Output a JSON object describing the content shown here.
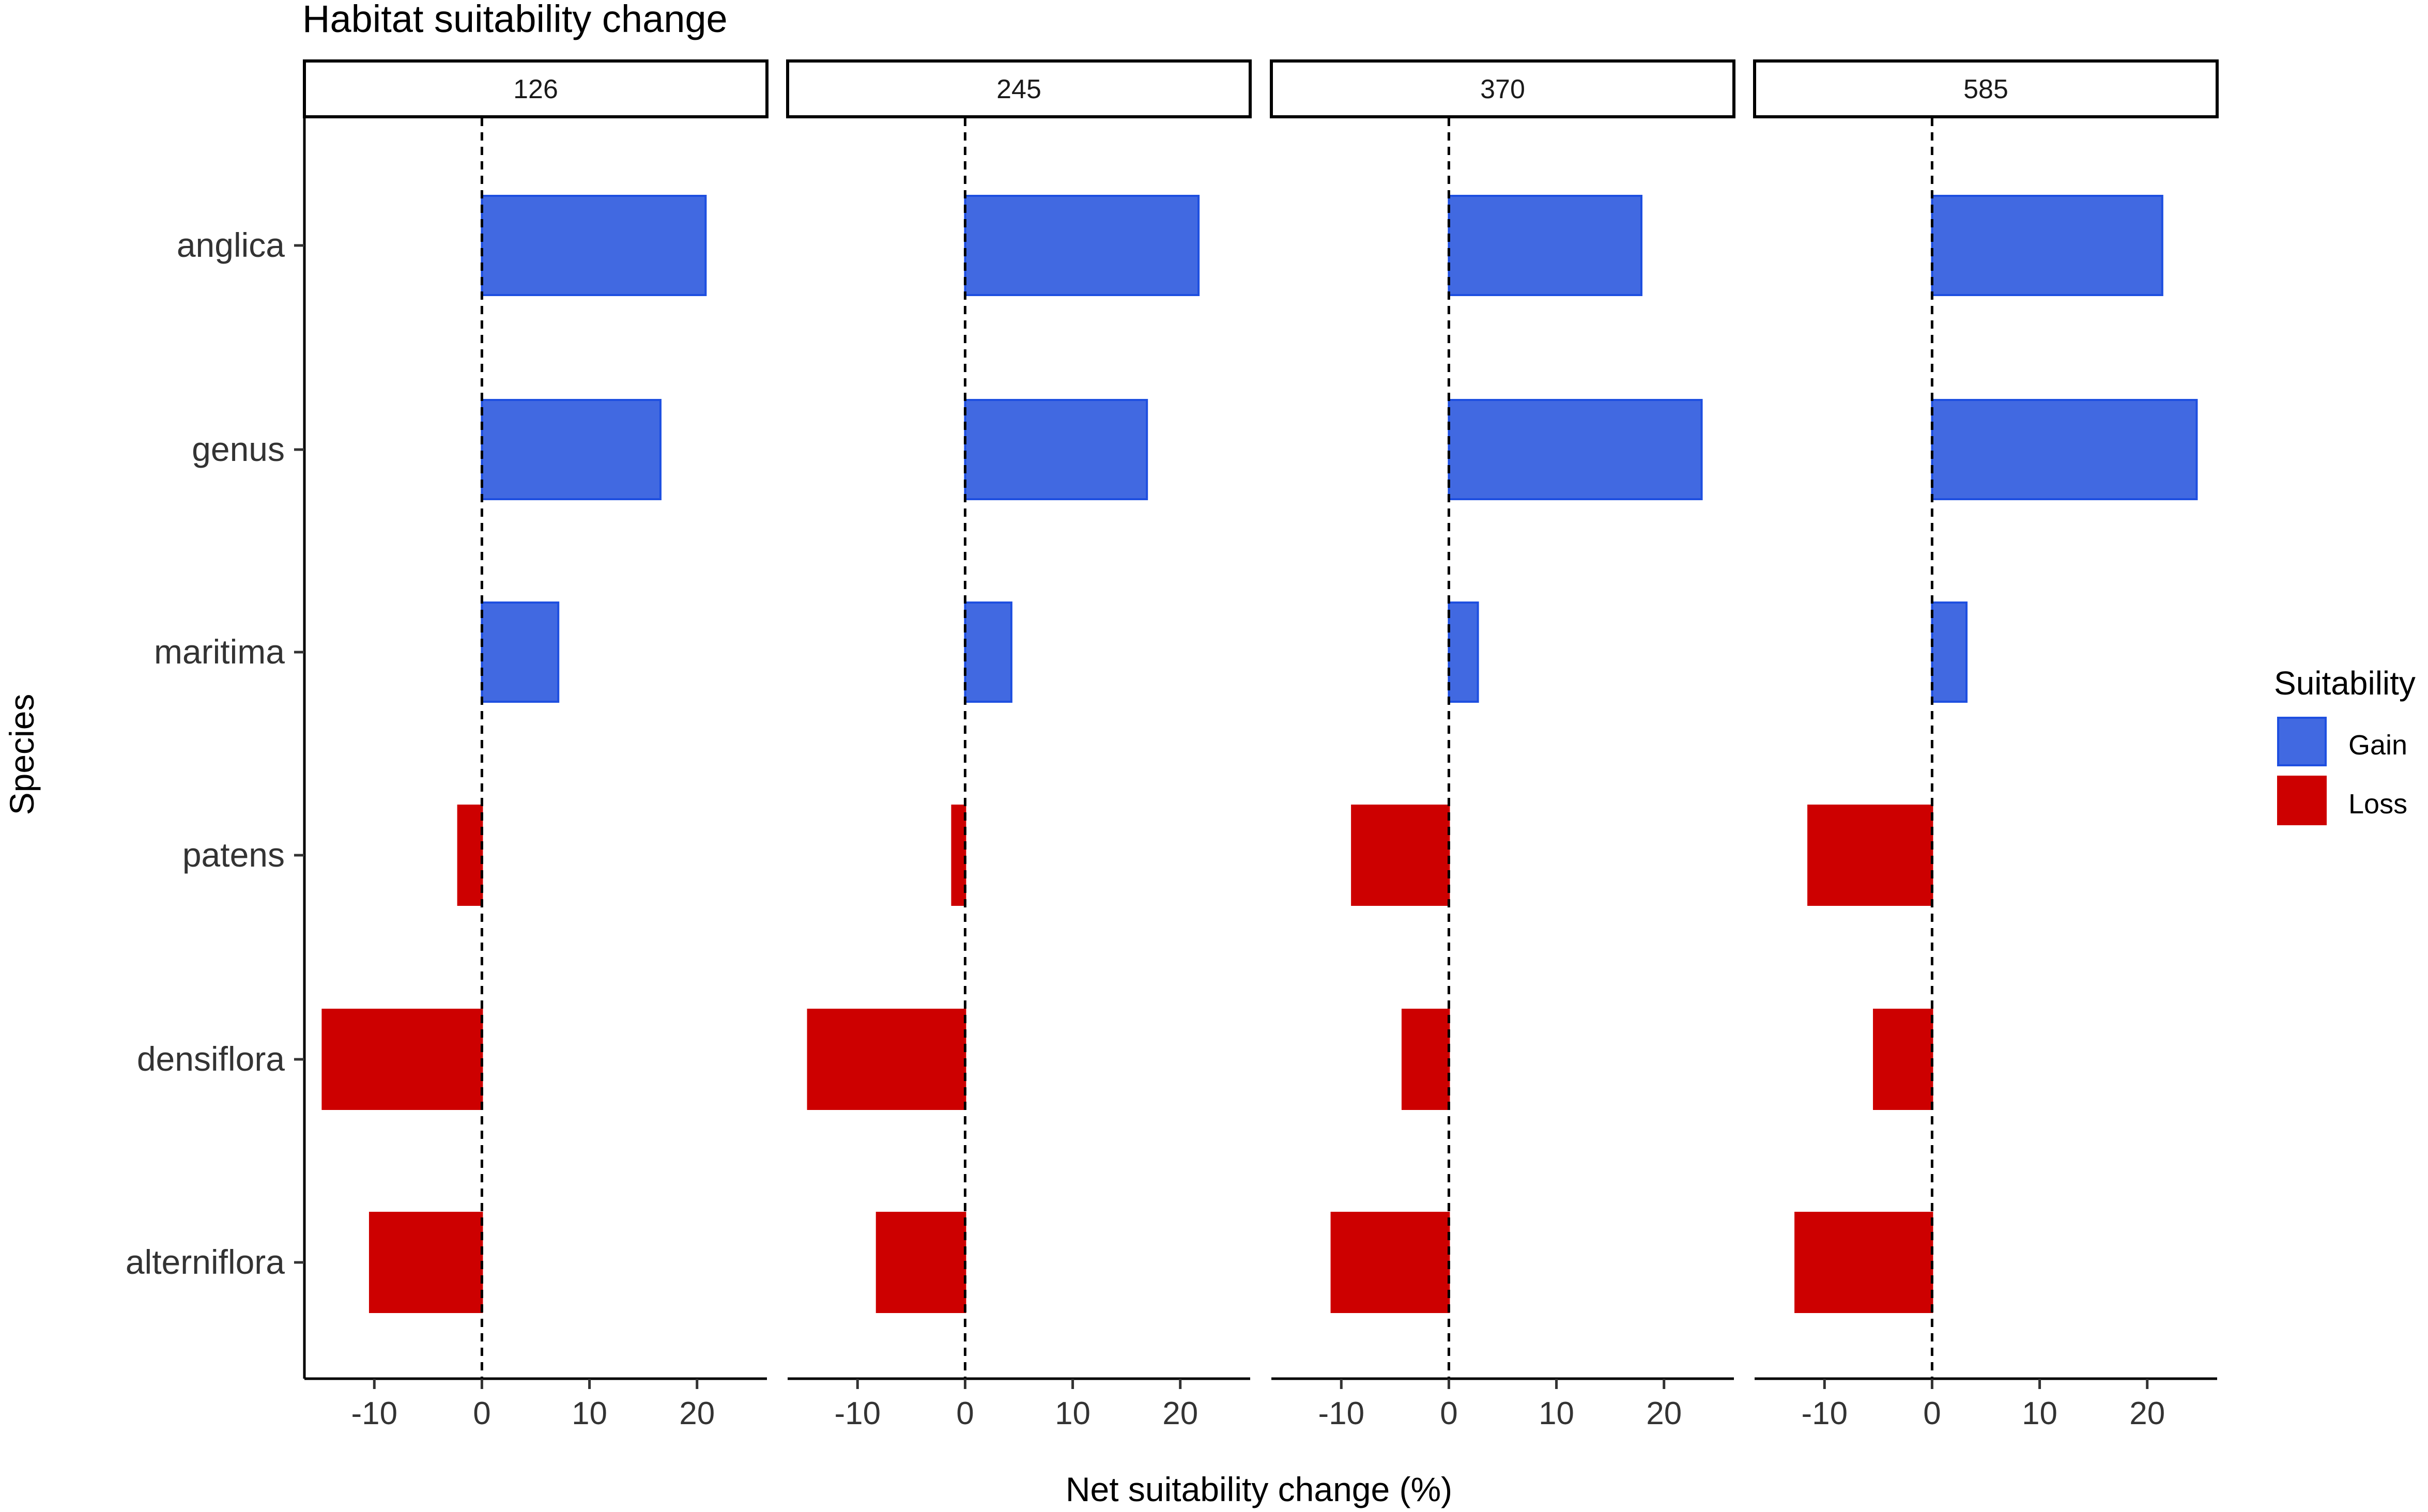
{
  "chart_data": {
    "type": "bar",
    "orientation": "horizontal",
    "title": "Habitat suitability change",
    "xlabel": "Net suitability change (%)",
    "ylabel": "Species",
    "xlim": [
      -16.5,
      26.5
    ],
    "xticks": [
      -10,
      0,
      10,
      20
    ],
    "xtick_labels": [
      "-10",
      "0",
      "10",
      "20"
    ],
    "reference_line": 0,
    "categories": [
      "anglica",
      "genus",
      "maritima",
      "patens",
      "densiflora",
      "alterniflora"
    ],
    "facets": [
      {
        "label": "126",
        "values": [
          20.8,
          16.6,
          7.1,
          -2.2,
          -14.8,
          -10.4
        ]
      },
      {
        "label": "245",
        "values": [
          21.7,
          16.9,
          4.3,
          -1.2,
          -14.6,
          -8.2
        ]
      },
      {
        "label": "370",
        "values": [
          17.9,
          23.5,
          2.7,
          -9.0,
          -4.3,
          -10.9
        ]
      },
      {
        "label": "585",
        "values": [
          21.4,
          24.6,
          3.2,
          -11.5,
          -5.4,
          -12.7
        ]
      }
    ],
    "legend": {
      "title": "Suitability",
      "position": "right",
      "items": [
        {
          "label": "Gain",
          "color": "#4169E1"
        },
        {
          "label": "Loss",
          "color": "#CD0000"
        }
      ]
    },
    "colors": {
      "gain_fill": "#4169E1",
      "gain_stroke": "#1E4FE0",
      "loss_fill": "#CD0000",
      "loss_stroke": "#CD0000",
      "axis": "#000000",
      "tick_text": "#333333"
    }
  }
}
